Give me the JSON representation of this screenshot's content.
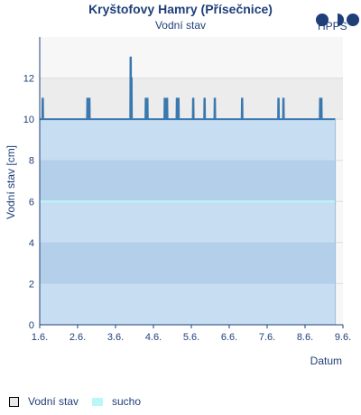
{
  "header": {
    "title": "Kryštofovy Hamry (Přísečnice)",
    "subtitle": "Vodní stav",
    "logo_text": "HPPS"
  },
  "chart_data": {
    "type": "area",
    "title": "Kryštofovy Hamry (Přísečnice)",
    "subtitle": "Vodní stav",
    "xlabel": "Datum",
    "ylabel": "Vodní stav [cm]",
    "xlim": [
      1.6,
      9.6
    ],
    "ylim": [
      0,
      14
    ],
    "x_ticks": [
      "1.6.",
      "2.6.",
      "3.6.",
      "4.6.",
      "5.6.",
      "6.6.",
      "7.6.",
      "8.6.",
      "9.6."
    ],
    "y_ticks": [
      0,
      2,
      4,
      6,
      8,
      10,
      12
    ],
    "grid": true,
    "legend_position": "bottom-left",
    "x_unit": "days since 1.6.",
    "series": [
      {
        "name": "Vodní stav",
        "color": "#3a78b0",
        "fill": "#c6ddf2",
        "baseline": 10,
        "x_end": 7.8,
        "spikes": [
          {
            "x": 0.08,
            "y": 11
          },
          {
            "x": 1.26,
            "y": 11
          },
          {
            "x": 1.31,
            "y": 11
          },
          {
            "x": 2.4,
            "y": 13
          },
          {
            "x": 2.42,
            "y": 12
          },
          {
            "x": 2.8,
            "y": 11
          },
          {
            "x": 2.84,
            "y": 11
          },
          {
            "x": 3.3,
            "y": 11
          },
          {
            "x": 3.36,
            "y": 11
          },
          {
            "x": 3.62,
            "y": 11
          },
          {
            "x": 3.66,
            "y": 11
          },
          {
            "x": 4.05,
            "y": 11
          },
          {
            "x": 4.35,
            "y": 11
          },
          {
            "x": 4.62,
            "y": 11
          },
          {
            "x": 5.34,
            "y": 11
          },
          {
            "x": 6.3,
            "y": 11
          },
          {
            "x": 6.43,
            "y": 11
          },
          {
            "x": 7.4,
            "y": 11
          },
          {
            "x": 7.43,
            "y": 11
          }
        ]
      },
      {
        "name": "sucho",
        "color": "#b9f7f8",
        "value": 6
      }
    ]
  },
  "colors": {
    "plot_band_upper": "#ececec",
    "plot_band_light": "#f7f7f7",
    "area_fill": "#c6ddf2",
    "area_band_dark": "#b3cfea",
    "line": "#3a78b0",
    "sucho": "#b9f7f8",
    "text": "#1f3f7a"
  },
  "legend": {
    "items": [
      {
        "label": "Vodní stav",
        "color": "#e8e8e8",
        "border": "#000000"
      },
      {
        "label": "sucho",
        "color": "#b9f7f8",
        "border": "#b9f7f8"
      }
    ]
  }
}
